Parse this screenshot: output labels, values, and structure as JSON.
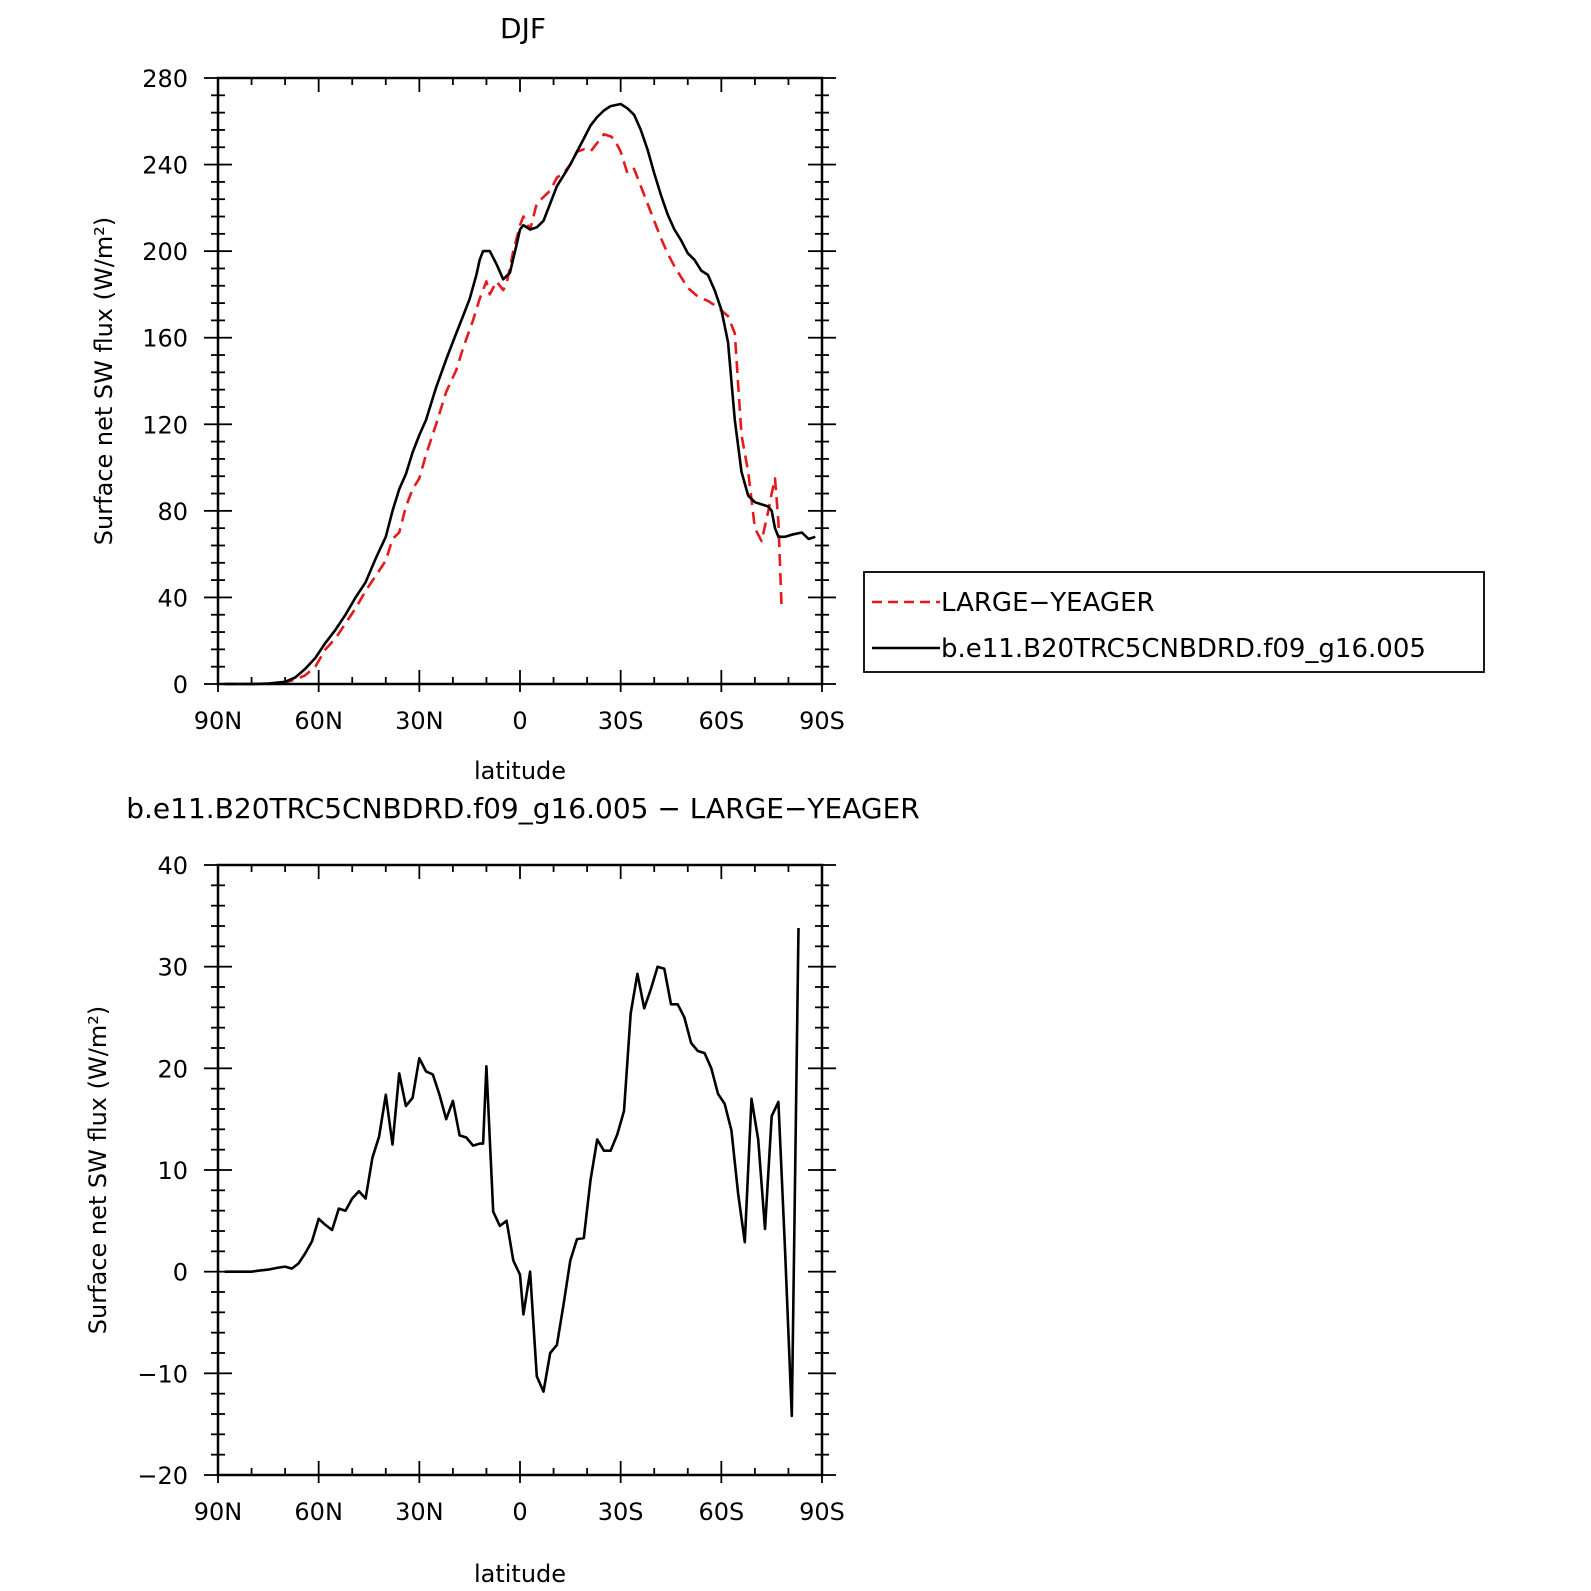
{
  "chart_data": [
    {
      "type": "line",
      "title": "DJF",
      "xlabel": "latitude",
      "ylabel": "Surface net SW flux (W/m²)",
      "xlim": [
        90,
        -90
      ],
      "ylim": [
        0,
        280
      ],
      "x_ticks": [
        90,
        60,
        30,
        0,
        -30,
        -60,
        -90
      ],
      "x_tick_labels": [
        "90N",
        "60N",
        "30N",
        "0",
        "30S",
        "60S",
        "90S"
      ],
      "y_ticks": [
        0,
        40,
        80,
        120,
        160,
        200,
        240,
        280
      ],
      "y_tick_labels": [
        "0",
        "40",
        "80",
        "120",
        "160",
        "200",
        "240",
        "280"
      ],
      "legend_position": "right",
      "series": [
        {
          "name": "LARGE−YEAGER",
          "color": "#e8191c",
          "dash": "dashed",
          "points": [
            [
              88,
              0
            ],
            [
              80,
              0
            ],
            [
              75,
              0.2
            ],
            [
              70,
              0.8
            ],
            [
              67,
              2
            ],
            [
              64,
              4
            ],
            [
              61,
              8
            ],
            [
              58,
              16
            ],
            [
              55,
              21
            ],
            [
              52,
              28
            ],
            [
              49,
              35
            ],
            [
              46,
              43
            ],
            [
              43,
              50
            ],
            [
              40,
              57
            ],
            [
              38,
              67
            ],
            [
              36,
              70
            ],
            [
              34,
              82
            ],
            [
              32,
              90
            ],
            [
              30,
              95
            ],
            [
              28,
              106
            ],
            [
              25,
              120
            ],
            [
              22,
              135
            ],
            [
              19,
              145
            ],
            [
              17,
              155
            ],
            [
              14,
              168
            ],
            [
              12,
              178
            ],
            [
              10,
              186
            ],
            [
              9,
              180
            ],
            [
              7,
              186
            ],
            [
              5,
              182
            ],
            [
              4,
              185
            ],
            [
              2,
              200
            ],
            [
              0,
              212
            ],
            [
              -1,
              216
            ],
            [
              -3,
              210
            ],
            [
              -5,
              222
            ],
            [
              -7,
              225
            ],
            [
              -9,
              228
            ],
            [
              -11,
              234
            ],
            [
              -13,
              236
            ],
            [
              -15,
              240
            ],
            [
              -17,
              246
            ],
            [
              -19,
              247
            ],
            [
              -21,
              246
            ],
            [
              -23,
              250
            ],
            [
              -25,
              254
            ],
            [
              -27,
              253
            ],
            [
              -28,
              252
            ],
            [
              -30,
              246
            ],
            [
              -32,
              236
            ],
            [
              -34,
              238
            ],
            [
              -36,
              230
            ],
            [
              -38,
              222
            ],
            [
              -40,
              214
            ],
            [
              -42,
              206
            ],
            [
              -44,
              199
            ],
            [
              -46,
              193
            ],
            [
              -48,
              188
            ],
            [
              -50,
              183
            ],
            [
              -53,
              179
            ],
            [
              -56,
              177
            ],
            [
              -59,
              174
            ],
            [
              -62,
              170
            ],
            [
              -64,
              162
            ],
            [
              -66,
              115
            ],
            [
              -68,
              98
            ],
            [
              -70,
              72
            ],
            [
              -72,
              66
            ],
            [
              -74,
              80
            ],
            [
              -75,
              88
            ],
            [
              -76,
              95
            ],
            [
              -77,
              75
            ],
            [
              -78,
              34
            ]
          ]
        },
        {
          "name": "b.e11.B20TRC5CNBDRD.f09_g16.005",
          "color": "#000000",
          "dash": "solid",
          "points": [
            [
              88,
              0
            ],
            [
              80,
              0
            ],
            [
              75,
              0.2
            ],
            [
              70,
              1
            ],
            [
              67,
              3
            ],
            [
              64,
              7
            ],
            [
              61,
              12
            ],
            [
              58,
              19
            ],
            [
              55,
              25
            ],
            [
              52,
              32
            ],
            [
              49,
              40
            ],
            [
              46,
              47
            ],
            [
              43,
              58
            ],
            [
              40,
              68
            ],
            [
              38,
              80
            ],
            [
              36,
              90
            ],
            [
              34,
              97
            ],
            [
              32,
              107
            ],
            [
              30,
              115
            ],
            [
              28,
              122
            ],
            [
              25,
              137
            ],
            [
              22,
              150
            ],
            [
              19,
              162
            ],
            [
              17,
              170
            ],
            [
              15,
              178
            ],
            [
              13,
              189
            ],
            [
              12,
              196
            ],
            [
              11,
              200
            ],
            [
              9,
              200
            ],
            [
              7,
              194
            ],
            [
              5,
              187
            ],
            [
              3,
              190
            ],
            [
              1,
              203
            ],
            [
              0,
              210
            ],
            [
              -1,
              212
            ],
            [
              -3,
              210
            ],
            [
              -5,
              211
            ],
            [
              -7,
              214
            ],
            [
              -9,
              222
            ],
            [
              -11,
              230
            ],
            [
              -13,
              235
            ],
            [
              -15,
              240
            ],
            [
              -17,
              246
            ],
            [
              -19,
              252
            ],
            [
              -21,
              258
            ],
            [
              -23,
              262
            ],
            [
              -25,
              265
            ],
            [
              -27,
              267
            ],
            [
              -30,
              268
            ],
            [
              -32,
              266
            ],
            [
              -34,
              263
            ],
            [
              -36,
              256
            ],
            [
              -38,
              247
            ],
            [
              -40,
              236
            ],
            [
              -42,
              226
            ],
            [
              -44,
              217
            ],
            [
              -46,
              210
            ],
            [
              -48,
              205
            ],
            [
              -50,
              199
            ],
            [
              -52,
              196
            ],
            [
              -54,
              191
            ],
            [
              -56,
              189
            ],
            [
              -58,
              182
            ],
            [
              -60,
              173
            ],
            [
              -62,
              158
            ],
            [
              -64,
              122
            ],
            [
              -66,
              98
            ],
            [
              -68,
              87
            ],
            [
              -70,
              84
            ],
            [
              -72,
              83
            ],
            [
              -74,
              82
            ],
            [
              -75,
              80
            ],
            [
              -76,
              72
            ],
            [
              -77,
              68
            ],
            [
              -79,
              68
            ],
            [
              -81,
              69
            ],
            [
              -84,
              70
            ],
            [
              -86,
              67
            ],
            [
              -88,
              68
            ]
          ]
        }
      ]
    },
    {
      "type": "line",
      "title": "b.e11.B20TRC5CNBDRD.f09_g16.005 − LARGE−YEAGER",
      "xlabel": "latitude",
      "ylabel": "Surface net SW flux (W/m²)",
      "xlim": [
        90,
        -90
      ],
      "ylim": [
        -20,
        40
      ],
      "x_ticks": [
        90,
        60,
        30,
        0,
        -30,
        -60,
        -90
      ],
      "x_tick_labels": [
        "90N",
        "60N",
        "30N",
        "0",
        "30S",
        "60S",
        "90S"
      ],
      "y_ticks": [
        -20,
        -10,
        0,
        10,
        20,
        30,
        40
      ],
      "y_tick_labels": [
        "−20",
        "−10",
        "0",
        "10",
        "20",
        "30",
        "40"
      ],
      "series": [
        {
          "color": "#000000",
          "dash": "solid",
          "points": [
            [
              88,
              0
            ],
            [
              80,
              0
            ],
            [
              78,
              0.1
            ],
            [
              75,
              0.2
            ],
            [
              72,
              0.4
            ],
            [
              70,
              0.5
            ],
            [
              68,
              0.3
            ],
            [
              66,
              0.8
            ],
            [
              64,
              1.8
            ],
            [
              62,
              3
            ],
            [
              60,
              5.2
            ],
            [
              58,
              4.6
            ],
            [
              56,
              4.1
            ],
            [
              54,
              6.2
            ],
            [
              52,
              6
            ],
            [
              50,
              7.2
            ],
            [
              48,
              7.9
            ],
            [
              46,
              7.2
            ],
            [
              44,
              11.2
            ],
            [
              42,
              13.3
            ],
            [
              40,
              17.4
            ],
            [
              38,
              12.5
            ],
            [
              36,
              19.5
            ],
            [
              34,
              16.3
            ],
            [
              32,
              17.1
            ],
            [
              30,
              21
            ],
            [
              28,
              19.7
            ],
            [
              26,
              19.4
            ],
            [
              24,
              17.4
            ],
            [
              22,
              15
            ],
            [
              20,
              16.8
            ],
            [
              18,
              13.4
            ],
            [
              16,
              13.2
            ],
            [
              14,
              12.4
            ],
            [
              12,
              12.6
            ],
            [
              11,
              12.6
            ],
            [
              10,
              20.2
            ],
            [
              8,
              5.9
            ],
            [
              6,
              4.5
            ],
            [
              4,
              5
            ],
            [
              2,
              1.1
            ],
            [
              0,
              -0.3
            ],
            [
              -1,
              -4.2
            ],
            [
              -3,
              0
            ],
            [
              -5,
              -10.3
            ],
            [
              -7,
              -11.8
            ],
            [
              -9,
              -8
            ],
            [
              -11,
              -7.2
            ],
            [
              -13,
              -3.2
            ],
            [
              -15,
              1.1
            ],
            [
              -17,
              3.2
            ],
            [
              -19,
              3.3
            ],
            [
              -21,
              9
            ],
            [
              -23,
              13
            ],
            [
              -25,
              11.9
            ],
            [
              -27,
              11.9
            ],
            [
              -29,
              13.5
            ],
            [
              -31,
              15.8
            ],
            [
              -33,
              25.4
            ],
            [
              -35,
              29.3
            ],
            [
              -37,
              25.9
            ],
            [
              -39,
              27.8
            ],
            [
              -41,
              30
            ],
            [
              -43,
              29.8
            ],
            [
              -45,
              26.3
            ],
            [
              -47,
              26.3
            ],
            [
              -49,
              25
            ],
            [
              -51,
              22.5
            ],
            [
              -53,
              21.7
            ],
            [
              -55,
              21.5
            ],
            [
              -57,
              20
            ],
            [
              -59,
              17.5
            ],
            [
              -61,
              16.5
            ],
            [
              -63,
              13.9
            ],
            [
              -65,
              7.7
            ],
            [
              -67,
              2.9
            ],
            [
              -69,
              17
            ],
            [
              -71,
              13
            ],
            [
              -73,
              4.2
            ],
            [
              -75,
              15.3
            ],
            [
              -77,
              16.7
            ],
            [
              -79,
              2
            ],
            [
              -81,
              -14.2
            ],
            [
              -83,
              33.8
            ]
          ]
        }
      ]
    }
  ]
}
